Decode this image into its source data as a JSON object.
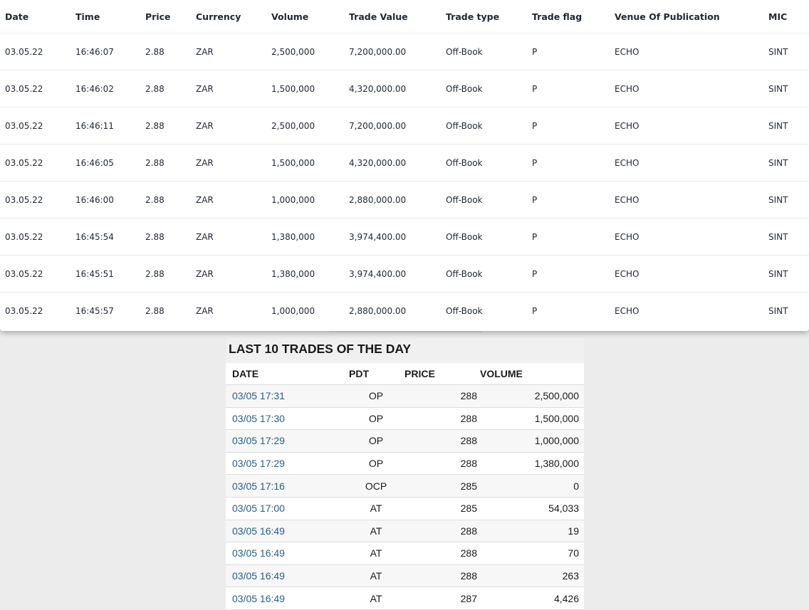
{
  "top_table": {
    "headers": [
      "Date",
      "Time",
      "Price",
      "Currency",
      "Volume",
      "Trade Value",
      "Trade type",
      "Trade flag",
      "Venue Of Publication",
      "MIC"
    ],
    "rows": [
      [
        "03.05.22",
        "16:46:07",
        "2.88",
        "ZAR",
        "2,500,000",
        "7,200,000.00",
        "Off-Book",
        "P",
        "ECHO",
        "SINT"
      ],
      [
        "03.05.22",
        "16:46:02",
        "2.88",
        "ZAR",
        "1,500,000",
        "4,320,000.00",
        "Off-Book",
        "P",
        "ECHO",
        "SINT"
      ],
      [
        "03.05.22",
        "16:46:11",
        "2.88",
        "ZAR",
        "2,500,000",
        "7,200,000.00",
        "Off-Book",
        "P",
        "ECHO",
        "SINT"
      ],
      [
        "03.05.22",
        "16:46:05",
        "2.88",
        "ZAR",
        "1,500,000",
        "4,320,000.00",
        "Off-Book",
        "P",
        "ECHO",
        "SINT"
      ],
      [
        "03.05.22",
        "16:46:00",
        "2.88",
        "ZAR",
        "1,000,000",
        "2,880,000.00",
        "Off-Book",
        "P",
        "ECHO",
        "SINT"
      ],
      [
        "03.05.22",
        "16:45:54",
        "2.88",
        "ZAR",
        "1,380,000",
        "3,974,400.00",
        "Off-Book",
        "P",
        "ECHO",
        "SINT"
      ],
      [
        "03.05.22",
        "16:45:51",
        "2.88",
        "ZAR",
        "1,380,000",
        "3,974,400.00",
        "Off-Book",
        "P",
        "ECHO",
        "SINT"
      ],
      [
        "03.05.22",
        "16:45:57",
        "2.88",
        "ZAR",
        "1,000,000",
        "2,880,000.00",
        "Off-Book",
        "P",
        "ECHO",
        "SINT"
      ]
    ]
  },
  "bottom_table": {
    "title": "LAST 10 TRADES OF THE DAY",
    "headers": [
      "DATE",
      "PDT",
      "PRICE",
      "VOLUME"
    ],
    "rows": [
      [
        "03/05 17:31",
        "OP",
        "288",
        "2,500,000"
      ],
      [
        "03/05 17:30",
        "OP",
        "288",
        "1,500,000"
      ],
      [
        "03/05 17:29",
        "OP",
        "288",
        "1,000,000"
      ],
      [
        "03/05 17:29",
        "OP",
        "288",
        "1,380,000"
      ],
      [
        "03/05 17:16",
        "OCP",
        "285",
        "0"
      ],
      [
        "03/05 17:00",
        "AT",
        "285",
        "54,033"
      ],
      [
        "03/05 16:49",
        "AT",
        "288",
        "19"
      ],
      [
        "03/05 16:49",
        "AT",
        "288",
        "70"
      ],
      [
        "03/05 16:49",
        "AT",
        "288",
        "263"
      ],
      [
        "03/05 16:49",
        "AT",
        "287",
        "4,426"
      ]
    ]
  },
  "colors": {
    "date_link": "#265f8c",
    "background": "#ececec",
    "stripe": "#f7f7f7"
  }
}
